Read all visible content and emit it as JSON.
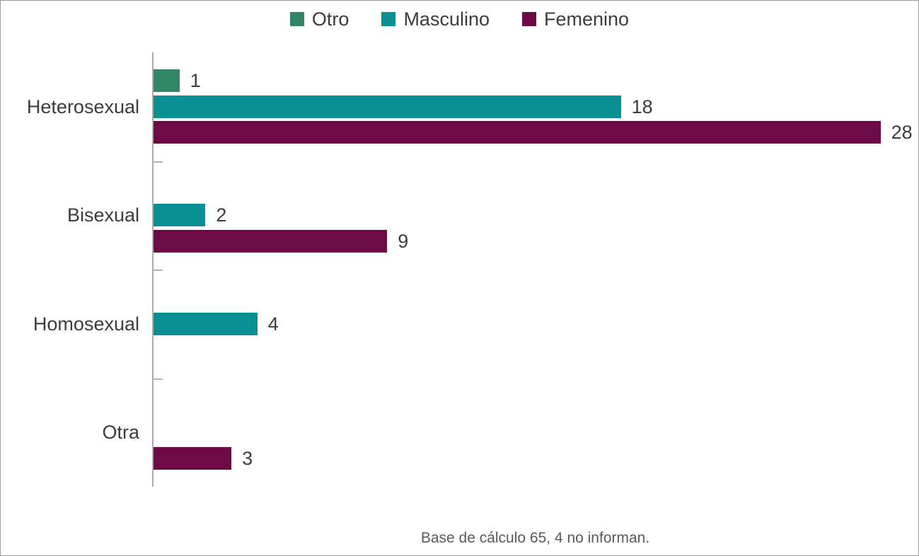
{
  "legend": [
    {
      "label": "Otro",
      "color": "#2F8765"
    },
    {
      "label": "Masculino",
      "color": "#089092"
    },
    {
      "label": "Femenino",
      "color": "#6B0A46"
    }
  ],
  "chart_data": {
    "type": "bar",
    "orientation": "horizontal",
    "title": "",
    "xlabel": "",
    "ylabel": "",
    "categories": [
      "Heterosexual",
      "Bisexual",
      "Homosexual",
      "Otra"
    ],
    "series": [
      {
        "name": "Otro",
        "color": "#2F8765",
        "values": [
          1,
          null,
          null,
          null
        ]
      },
      {
        "name": "Masculino",
        "color": "#089092",
        "values": [
          18,
          2,
          4,
          null
        ]
      },
      {
        "name": "Femenino",
        "color": "#6B0A46",
        "values": [
          28,
          9,
          null,
          3
        ]
      }
    ],
    "xlim": [
      0,
      29.3
    ],
    "value_labels": true,
    "legend_position": "top",
    "grid": false
  },
  "footer": {
    "note": "Base de cálculo 65, 4 no informan."
  }
}
